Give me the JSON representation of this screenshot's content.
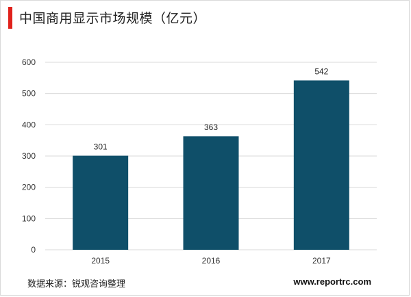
{
  "title": "中国商用显示市场规模（亿元）",
  "footer": {
    "source": "数据来源：锐观咨询整理",
    "url": "www.reportrc.com"
  },
  "colors": {
    "bar": "#0f4f69",
    "accent": "#e0221c",
    "grid": "#d9d9d9"
  },
  "chart_data": {
    "type": "bar",
    "categories": [
      "2015",
      "2016",
      "2017"
    ],
    "values": [
      301,
      363,
      542
    ],
    "ylim": [
      0,
      600
    ],
    "yticks": [
      0,
      100,
      200,
      300,
      400,
      500,
      600
    ],
    "grid": true,
    "legend": "none"
  }
}
